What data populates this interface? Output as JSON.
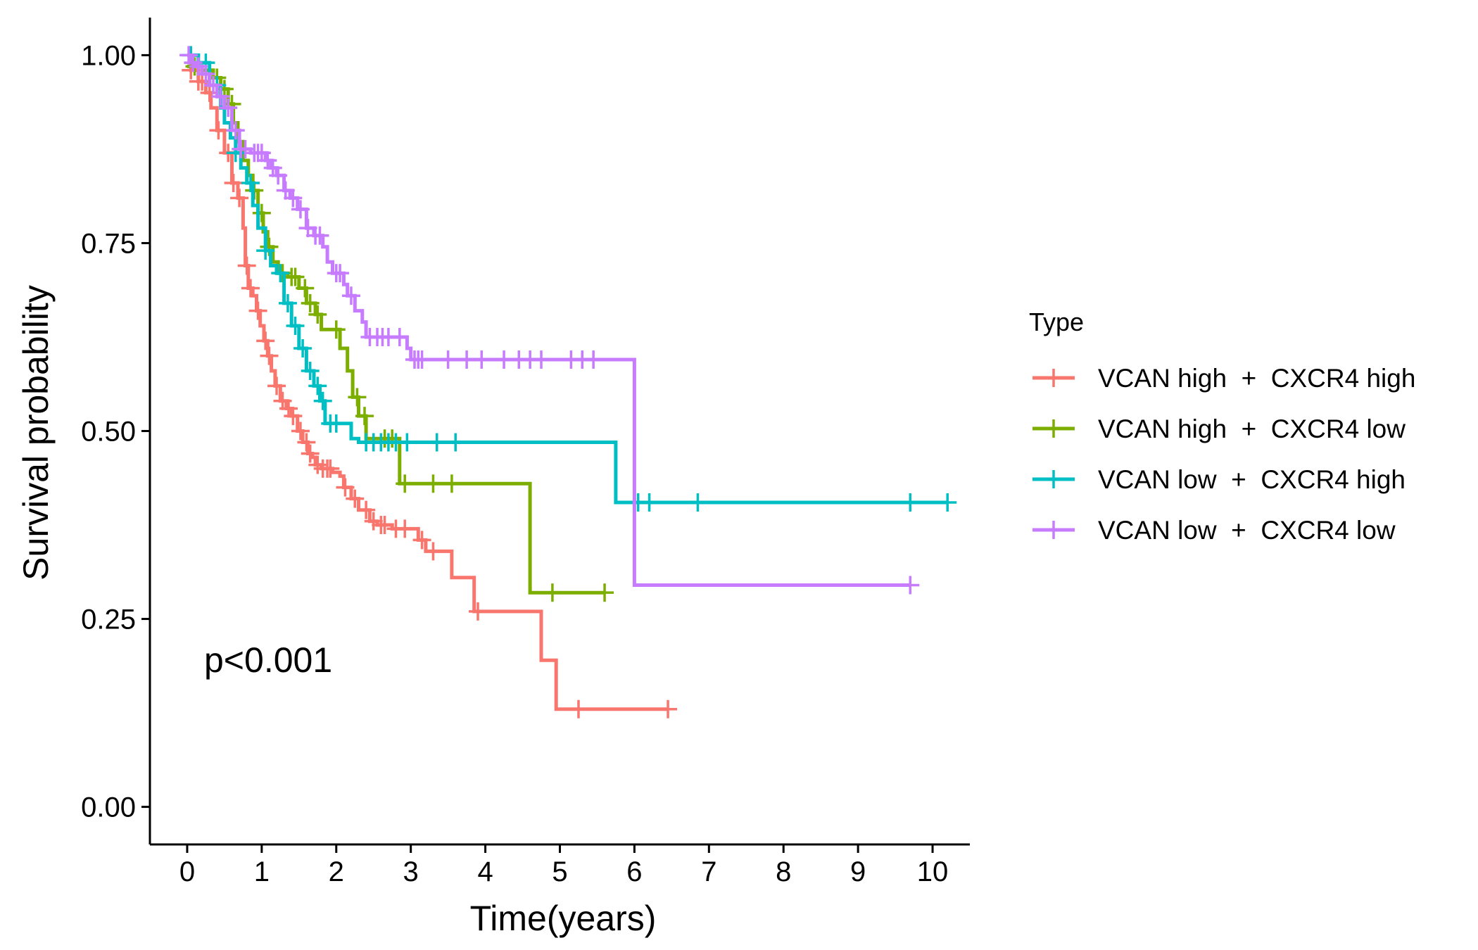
{
  "chart_data": {
    "type": "line",
    "subtype": "kaplan-meier",
    "title": "",
    "xlabel": "Time(years)",
    "ylabel": "Survival probability",
    "xlim": [
      -0.5,
      10.5
    ],
    "ylim": [
      -0.05,
      1.05
    ],
    "xticks": [
      "0",
      "1",
      "2",
      "3",
      "4",
      "5",
      "6",
      "7",
      "8",
      "9",
      "10"
    ],
    "yticks": [
      "0.00",
      "0.25",
      "0.50",
      "0.75",
      "1.00"
    ],
    "grid": false,
    "legend": {
      "title": "Type",
      "position": "right",
      "labels": [
        "VCAN high  +  CXCR4 high",
        "VCAN high  +  CXCR4 low",
        "VCAN low  +  CXCR4 high",
        "VCAN low  +  CXCR4 low"
      ]
    },
    "annotation": "p<0.001",
    "series": [
      {
        "name": "VCAN high  +  CXCR4 high",
        "color": "#F8766D",
        "steps": [
          [
            0,
            1.0
          ],
          [
            0.05,
            0.98
          ],
          [
            0.15,
            0.965
          ],
          [
            0.25,
            0.95
          ],
          [
            0.32,
            0.93
          ],
          [
            0.4,
            0.9
          ],
          [
            0.5,
            0.87
          ],
          [
            0.6,
            0.83
          ],
          [
            0.68,
            0.81
          ],
          [
            0.75,
            0.77
          ],
          [
            0.78,
            0.72
          ],
          [
            0.82,
            0.69
          ],
          [
            0.88,
            0.68
          ],
          [
            0.93,
            0.66
          ],
          [
            0.98,
            0.64
          ],
          [
            1.03,
            0.62
          ],
          [
            1.08,
            0.6
          ],
          [
            1.13,
            0.58
          ],
          [
            1.18,
            0.56
          ],
          [
            1.25,
            0.54
          ],
          [
            1.33,
            0.53
          ],
          [
            1.4,
            0.52
          ],
          [
            1.48,
            0.5
          ],
          [
            1.55,
            0.485
          ],
          [
            1.62,
            0.47
          ],
          [
            1.68,
            0.465
          ],
          [
            1.72,
            0.455
          ],
          [
            1.8,
            0.45
          ],
          [
            1.95,
            0.445
          ],
          [
            2.05,
            0.44
          ],
          [
            2.1,
            0.425
          ],
          [
            2.2,
            0.41
          ],
          [
            2.3,
            0.395
          ],
          [
            2.45,
            0.38
          ],
          [
            2.55,
            0.375
          ],
          [
            2.75,
            0.37
          ],
          [
            3.1,
            0.355
          ],
          [
            3.2,
            0.34
          ],
          [
            3.55,
            0.305
          ],
          [
            3.85,
            0.26
          ],
          [
            4.75,
            0.195
          ],
          [
            4.95,
            0.13
          ],
          [
            6.45,
            0.13
          ]
        ],
        "censor_times": [
          0.05,
          0.15,
          0.2,
          0.3,
          0.42,
          0.55,
          0.62,
          0.7,
          0.8,
          0.85,
          0.95,
          1.05,
          1.1,
          1.2,
          1.28,
          1.36,
          1.42,
          1.52,
          1.6,
          1.65,
          1.75,
          1.82,
          1.88,
          1.92,
          2.12,
          2.25,
          2.4,
          2.5,
          2.6,
          2.65,
          2.8,
          2.92,
          3.15,
          3.3,
          3.9,
          5.25,
          6.45
        ]
      },
      {
        "name": "VCAN high  +  CXCR4 low",
        "color": "#7CAE00",
        "steps": [
          [
            0,
            0.985
          ],
          [
            0.2,
            0.98
          ],
          [
            0.35,
            0.97
          ],
          [
            0.45,
            0.955
          ],
          [
            0.55,
            0.935
          ],
          [
            0.62,
            0.91
          ],
          [
            0.68,
            0.885
          ],
          [
            0.75,
            0.86
          ],
          [
            0.82,
            0.84
          ],
          [
            0.88,
            0.82
          ],
          [
            0.95,
            0.79
          ],
          [
            1.02,
            0.765
          ],
          [
            1.08,
            0.745
          ],
          [
            1.15,
            0.725
          ],
          [
            1.22,
            0.71
          ],
          [
            1.35,
            0.705
          ],
          [
            1.5,
            0.69
          ],
          [
            1.6,
            0.67
          ],
          [
            1.72,
            0.655
          ],
          [
            1.8,
            0.635
          ],
          [
            2.05,
            0.61
          ],
          [
            2.15,
            0.58
          ],
          [
            2.22,
            0.545
          ],
          [
            2.3,
            0.52
          ],
          [
            2.4,
            0.49
          ],
          [
            2.85,
            0.43
          ],
          [
            4.6,
            0.285
          ],
          [
            5.6,
            0.285
          ]
        ],
        "censor_times": [
          0.1,
          0.4,
          0.5,
          0.6,
          0.9,
          1.0,
          1.1,
          1.28,
          1.4,
          1.45,
          1.58,
          1.65,
          1.75,
          2.0,
          2.28,
          2.38,
          2.65,
          2.75,
          2.92,
          3.3,
          3.55,
          4.9,
          5.6
        ]
      },
      {
        "name": "VCAN low  +  CXCR4 high",
        "color": "#00BFC4",
        "steps": [
          [
            0,
            1.0
          ],
          [
            0.15,
            0.99
          ],
          [
            0.3,
            0.96
          ],
          [
            0.45,
            0.93
          ],
          [
            0.5,
            0.91
          ],
          [
            0.58,
            0.89
          ],
          [
            0.65,
            0.87
          ],
          [
            0.72,
            0.85
          ],
          [
            0.8,
            0.83
          ],
          [
            0.88,
            0.8
          ],
          [
            0.95,
            0.77
          ],
          [
            1.05,
            0.74
          ],
          [
            1.12,
            0.72
          ],
          [
            1.2,
            0.71
          ],
          [
            1.3,
            0.67
          ],
          [
            1.4,
            0.64
          ],
          [
            1.5,
            0.61
          ],
          [
            1.6,
            0.58
          ],
          [
            1.7,
            0.56
          ],
          [
            1.78,
            0.54
          ],
          [
            1.85,
            0.51
          ],
          [
            2.2,
            0.49
          ],
          [
            2.3,
            0.485
          ],
          [
            5.75,
            0.405
          ],
          [
            10.2,
            0.405
          ]
        ],
        "censor_times": [
          0.05,
          0.25,
          0.4,
          0.65,
          0.85,
          1.05,
          1.25,
          1.35,
          1.45,
          1.55,
          1.65,
          1.75,
          1.82,
          1.92,
          2.0,
          2.4,
          2.5,
          2.6,
          2.7,
          2.8,
          2.95,
          3.35,
          3.6,
          6.05,
          6.2,
          6.85,
          9.7,
          10.2
        ]
      },
      {
        "name": "VCAN low  +  CXCR4 low",
        "color": "#C77CFF",
        "steps": [
          [
            0,
            1.0
          ],
          [
            0.05,
            0.99
          ],
          [
            0.12,
            0.985
          ],
          [
            0.2,
            0.975
          ],
          [
            0.3,
            0.96
          ],
          [
            0.4,
            0.945
          ],
          [
            0.5,
            0.93
          ],
          [
            0.6,
            0.9
          ],
          [
            0.7,
            0.875
          ],
          [
            0.85,
            0.87
          ],
          [
            1.05,
            0.86
          ],
          [
            1.12,
            0.85
          ],
          [
            1.2,
            0.84
          ],
          [
            1.3,
            0.82
          ],
          [
            1.38,
            0.81
          ],
          [
            1.48,
            0.795
          ],
          [
            1.6,
            0.77
          ],
          [
            1.7,
            0.76
          ],
          [
            1.82,
            0.745
          ],
          [
            1.88,
            0.725
          ],
          [
            1.95,
            0.71
          ],
          [
            2.1,
            0.695
          ],
          [
            2.15,
            0.68
          ],
          [
            2.25,
            0.66
          ],
          [
            2.35,
            0.645
          ],
          [
            2.4,
            0.625
          ],
          [
            2.75,
            0.625
          ],
          [
            2.95,
            0.61
          ],
          [
            3.0,
            0.595
          ],
          [
            6.0,
            0.295
          ],
          [
            9.7,
            0.295
          ]
        ],
        "censor_times": [
          0.02,
          0.08,
          0.15,
          0.25,
          0.35,
          0.45,
          0.55,
          0.65,
          0.72,
          0.78,
          0.9,
          0.95,
          1.0,
          1.08,
          1.15,
          1.22,
          1.32,
          1.42,
          1.52,
          1.62,
          1.72,
          1.78,
          2.0,
          2.05,
          2.2,
          2.45,
          2.55,
          2.62,
          2.7,
          2.85,
          3.05,
          3.1,
          3.15,
          3.5,
          3.75,
          3.95,
          4.25,
          4.45,
          4.6,
          4.75,
          5.15,
          5.3,
          5.45,
          9.7
        ]
      }
    ]
  }
}
